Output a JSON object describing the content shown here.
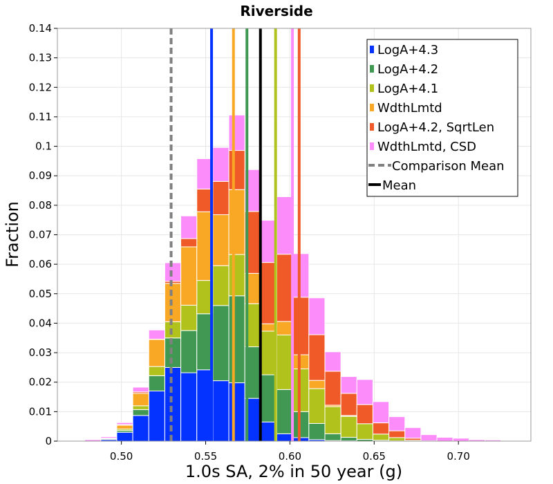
{
  "chart_data": {
    "type": "bar",
    "stacked": true,
    "title": "Riverside",
    "xlabel": "1.0s SA, 2% in 50 year (g)",
    "ylabel": "Fraction",
    "xlim": [
      0.462,
      0.743
    ],
    "ylim": [
      0,
      0.14
    ],
    "bin_width": 0.0095,
    "x_ticks": [
      0.5,
      0.55,
      0.6,
      0.65,
      0.7
    ],
    "x_tick_labels": [
      "0.50",
      "0.55",
      "0.60",
      "0.65",
      "0.70"
    ],
    "y_ticks": [
      0,
      0.01,
      0.02,
      0.03,
      0.04,
      0.05,
      0.06,
      0.07,
      0.08,
      0.09,
      0.1,
      0.11,
      0.12,
      0.13,
      0.14
    ],
    "y_tick_labels": [
      "0",
      "0.01",
      "0.02",
      "0.03",
      "0.04",
      "0.05",
      "0.06",
      "0.07",
      "0.08",
      "0.09",
      "0.1",
      "0.11",
      "0.12",
      "0.13",
      "0.14"
    ],
    "grid": true,
    "legend_position": "top-right",
    "x": [
      0.4735,
      0.483,
      0.4925,
      0.502,
      0.5115,
      0.521,
      0.5305,
      0.54,
      0.5495,
      0.559,
      0.5685,
      0.578,
      0.5875,
      0.597,
      0.6065,
      0.616,
      0.6255,
      0.635,
      0.6445,
      0.654,
      0.6635,
      0.673,
      0.6825,
      0.692,
      0.7015,
      0.711,
      0.7205
    ],
    "series": [
      {
        "name": "LogA+4.3",
        "color": "#0433ff",
        "values": [
          0,
          0,
          0.0005,
          0.003,
          0.0087,
          0.017,
          0.025,
          0.0232,
          0.0242,
          0.0205,
          0.0198,
          0.0145,
          0.0065,
          0.0025,
          0.0012,
          0.0005,
          0.0002,
          0.0001,
          0,
          0,
          0,
          0,
          0,
          0,
          0,
          0,
          0
        ]
      },
      {
        "name": "LogA+4.2",
        "color": "#409852",
        "values": [
          0,
          0,
          0.0003,
          0.0006,
          0.002,
          0.0052,
          0.01,
          0.0143,
          0.019,
          0.0255,
          0.0295,
          0.0175,
          0.016,
          0.015,
          0.0088,
          0.0055,
          0.0023,
          0.0012,
          0.0006,
          0.0003,
          0.0001,
          0,
          0,
          0,
          0,
          0,
          0
        ]
      },
      {
        "name": "LogA+4.1",
        "color": "#b2c21d",
        "values": [
          0,
          0,
          0,
          0.0005,
          0.0013,
          0.0031,
          0.0055,
          0.0086,
          0.0113,
          0.0135,
          0.014,
          0.0146,
          0.0148,
          0.0185,
          0.0145,
          0.0118,
          0.0092,
          0.0071,
          0.0053,
          0.0021,
          0.0011,
          0.0003,
          0.0001,
          0,
          0,
          0,
          0
        ]
      },
      {
        "name": "WdthLmtd",
        "color": "#f9a825",
        "values": [
          0,
          0,
          0.0002,
          0.0013,
          0.0042,
          0.0092,
          0.013,
          0.0198,
          0.0233,
          0.0173,
          0.022,
          0.0103,
          0.0025,
          0.0046,
          0.0048,
          0.0028,
          0.0005,
          0.0003,
          0,
          0,
          0,
          0,
          0,
          0,
          0,
          0,
          0
        ]
      },
      {
        "name": "LogA+4.2, SqrtLen",
        "color": "#f05a28",
        "values": [
          0,
          0,
          0,
          0.0002,
          0.0005,
          0.0001,
          0.0007,
          0.0028,
          0.0077,
          0.0113,
          0.0133,
          0.021,
          0.0208,
          0.0228,
          0.0195,
          0.0155,
          0.0115,
          0.0075,
          0.0065,
          0.0038,
          0.0023,
          0.0007,
          0,
          0,
          0,
          0,
          0
        ]
      },
      {
        "name": "WdthLmtd, CSD",
        "color": "#fb8cf9",
        "values": [
          0.0002,
          0.0005,
          0.0005,
          0.0007,
          0.0016,
          0.0031,
          0.0063,
          0.0077,
          0.0103,
          0.0115,
          0.012,
          0.0142,
          0.0143,
          0.0195,
          0.0148,
          0.0125,
          0.0066,
          0.0057,
          0.0085,
          0.0072,
          0.0048,
          0.0036,
          0.0021,
          0.0013,
          0.001,
          0.0005,
          0.0004
        ]
      }
    ],
    "vertical_lines": [
      {
        "label": "Comparison Mean",
        "x": 0.5295,
        "color": "#808080",
        "style": "dashed",
        "in_legend": true
      },
      {
        "label": "Mean",
        "x": 0.5825,
        "color": "#000000",
        "style": "solid",
        "in_legend": true
      },
      {
        "label": "LogA+4.3 mean",
        "x": 0.5535,
        "color": "#0433ff",
        "style": "solid",
        "in_legend": false
      },
      {
        "label": "WdthLmtd mean",
        "x": 0.5665,
        "color": "#f9a825",
        "style": "solid",
        "in_legend": false
      },
      {
        "label": "LogA+4.2 mean",
        "x": 0.5745,
        "color": "#409852",
        "style": "solid",
        "in_legend": false
      },
      {
        "label": "LogA+4.1 mean",
        "x": 0.5915,
        "color": "#b2c21d",
        "style": "solid",
        "in_legend": false
      },
      {
        "label": "WdthLmtd, CSD mean",
        "x": 0.6015,
        "color": "#fb8cf9",
        "style": "solid",
        "in_legend": false
      },
      {
        "label": "LogA+4.2, SqrtLen mean",
        "x": 0.6055,
        "color": "#f05a28",
        "style": "solid",
        "in_legend": false
      }
    ],
    "legend": [
      {
        "label": "LogA+4.3",
        "kind": "box",
        "color": "#0433ff"
      },
      {
        "label": "LogA+4.2",
        "kind": "box",
        "color": "#409852"
      },
      {
        "label": "LogA+4.1",
        "kind": "box",
        "color": "#b2c21d"
      },
      {
        "label": "WdthLmtd",
        "kind": "box",
        "color": "#f9a825"
      },
      {
        "label": "LogA+4.2, SqrtLen",
        "kind": "box",
        "color": "#f05a28"
      },
      {
        "label": "WdthLmtd, CSD",
        "kind": "box",
        "color": "#fb8cf9"
      },
      {
        "label": "Comparison Mean",
        "kind": "dashed",
        "color": "#808080"
      },
      {
        "label": "Mean",
        "kind": "solid",
        "color": "#000000"
      }
    ]
  }
}
